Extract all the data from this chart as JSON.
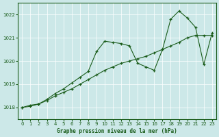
{
  "title": "Graphe pression niveau de la mer (hPa)",
  "background_color": "#cce8e8",
  "line_color": "#1a5c1a",
  "marker": "+",
  "ylim": [
    1017.5,
    1022.5
  ],
  "yticks": [
    1018,
    1019,
    1020,
    1021,
    1022
  ],
  "xlim": [
    -0.5,
    23.5
  ],
  "xticks": [
    0,
    1,
    2,
    3,
    4,
    5,
    6,
    7,
    8,
    9,
    10,
    11,
    12,
    13,
    14,
    15,
    16,
    17,
    18,
    19,
    20,
    21,
    22,
    23
  ],
  "series1_x": [
    0,
    1,
    2,
    3,
    4,
    5,
    6,
    7,
    8,
    9,
    10,
    11,
    12,
    13,
    14,
    15,
    16,
    17,
    18,
    19,
    20,
    21,
    22,
    23
  ],
  "series1_y": [
    1018.0,
    1018.05,
    1018.15,
    1018.3,
    1018.5,
    1018.65,
    1018.8,
    1019.0,
    1019.2,
    1019.4,
    1019.6,
    1019.75,
    1019.9,
    1020.0,
    1020.1,
    1020.2,
    1020.35,
    1020.5,
    1020.65,
    1020.8,
    1021.0,
    1021.1,
    1021.1,
    1021.1
  ],
  "series2_x": [
    0,
    1,
    2,
    3,
    4,
    5,
    6,
    7,
    8,
    9,
    10,
    11,
    12,
    13,
    14,
    15,
    16,
    17,
    18,
    19,
    20,
    21,
    22,
    23
  ],
  "series2_y": [
    1018.0,
    1018.1,
    1018.15,
    1018.35,
    1018.6,
    1018.8,
    1019.05,
    1019.3,
    1019.55,
    1020.4,
    1020.85,
    1020.8,
    1020.75,
    1020.65,
    1019.9,
    1019.75,
    1019.6,
    1020.5,
    1021.8,
    1022.15,
    1021.85,
    1021.45,
    1019.85,
    1021.2
  ]
}
